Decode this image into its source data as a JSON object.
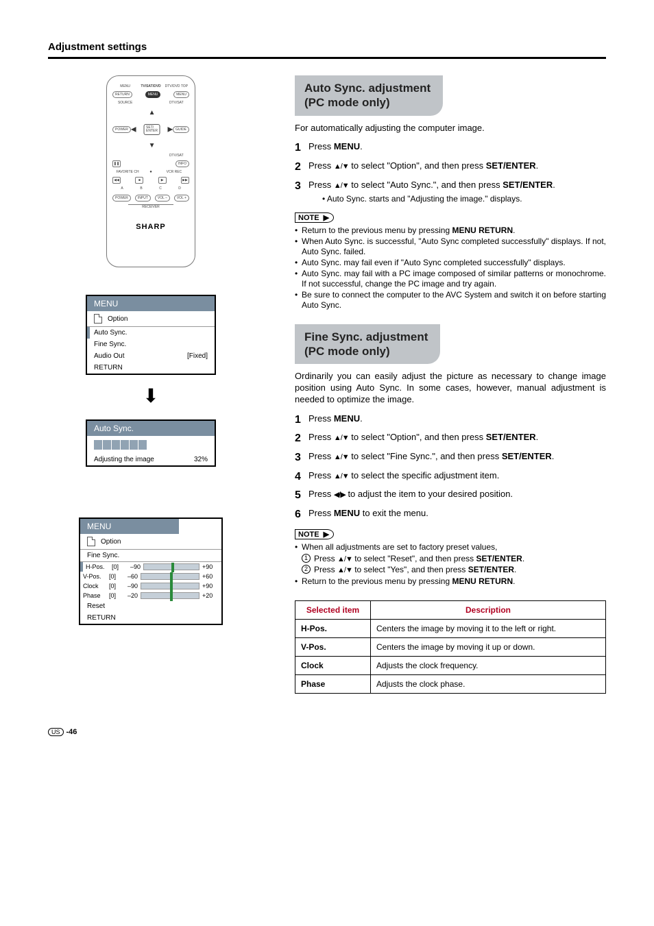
{
  "page": {
    "title": "Adjustment settings",
    "footer_region": "US",
    "footer_page": "-46"
  },
  "remote": {
    "row1": {
      "menu": "MENU",
      "tvsat": "TV/SAT/DVD",
      "dtv": "DTV/DVD TOP"
    },
    "row2": {
      "return": "RETURN",
      "menu_btn": "MENU",
      "menu_r": "MENU"
    },
    "row3": {
      "source": "SOURCE",
      "dtvsat": "DTV/SAT"
    },
    "row4": {
      "power": "POWER",
      "guide": "GUIDE"
    },
    "dpad_center": "SET/\nENTER",
    "dtv_sat2": "DTV/SAT",
    "info": "INFO",
    "fav": "FAVORITE CH",
    "vcr": "VCR REC",
    "abcd": {
      "a": "A",
      "b": "B",
      "c": "C",
      "d": "D"
    },
    "bottom": {
      "power": "POWER",
      "input": "INPUT",
      "volm": "VOL –",
      "volp": "VOL +",
      "receiver": "RECEIVER"
    },
    "logo": "SHARP"
  },
  "osd1": {
    "head": "MENU",
    "icon_label": "Option",
    "items": [
      {
        "label": "Auto Sync.",
        "sel": true,
        "val": ""
      },
      {
        "label": "Fine Sync.",
        "sel": false,
        "val": ""
      },
      {
        "label": "Audio Out",
        "sel": false,
        "val": "[Fixed]"
      },
      {
        "label": "RETURN",
        "sel": false,
        "val": ""
      }
    ]
  },
  "osd_auto": {
    "head": "Auto Sync.",
    "label": "Adjusting the image",
    "pct": "32%",
    "segments": 6
  },
  "osd_fine": {
    "head": "MENU",
    "icon_label": "Option",
    "sub": "Fine Sync.",
    "rows": [
      {
        "name": "H-Pos.",
        "cv": "[0]",
        "min": "–90",
        "max": "+90",
        "sel": true
      },
      {
        "name": "V-Pos.",
        "cv": "[0]",
        "min": "–60",
        "max": "+60"
      },
      {
        "name": "Clock",
        "cv": "[0]",
        "min": "–90",
        "max": "+90"
      },
      {
        "name": "Phase",
        "cv": "[0]",
        "min": "–20",
        "max": "+20"
      }
    ],
    "reset": "Reset",
    "return": "RETURN"
  },
  "sec_auto": {
    "title": "Auto Sync. adjustment\n(PC mode only)",
    "intro": "For automatically adjusting the computer image.",
    "steps": [
      {
        "n": "1",
        "pre": "Press ",
        "b": "MENU",
        "post": "."
      },
      {
        "n": "2",
        "pre": "Press ",
        "arr": "▲/▼",
        "mid": " to select \"Option\", and then press ",
        "b": "SET/ENTER",
        "post": "."
      },
      {
        "n": "3",
        "pre": "Press ",
        "arr": "▲/▼",
        "mid": " to select \"Auto Sync.\", and then press ",
        "b": "SET/ENTER",
        "post": ".",
        "bullet": "Auto Sync. starts and \"Adjusting the image.\" displays."
      }
    ],
    "note_label": "NOTE",
    "notes": [
      "Return to the previous menu by pressing <b>MENU RETURN</b>.",
      "When Auto Sync. is successful, \"Auto Sync completed successfully\" displays. If not, Auto Sync. failed.",
      "Auto Sync. may fail even if \"Auto Sync completed successfully\" displays.",
      "Auto Sync. may fail with a PC image composed of similar patterns or monochrome. If not successful, change the PC image and try again.",
      "Be sure to connect the computer to the AVC System and switch it on before starting Auto Sync."
    ]
  },
  "sec_fine": {
    "title": "Fine Sync. adjustment\n(PC mode only)",
    "intro": "Ordinarily you can easily adjust the picture as necessary to change image position using Auto Sync. In some cases, however, manual adjustment is needed to optimize the image.",
    "steps": [
      {
        "n": "1",
        "pre": "Press ",
        "b": "MENU",
        "post": "."
      },
      {
        "n": "2",
        "pre": "Press ",
        "arr": "▲/▼",
        "mid": " to select \"Option\", and then press ",
        "b": "SET/ENTER",
        "post": "."
      },
      {
        "n": "3",
        "pre": "Press ",
        "arr": "▲/▼",
        "mid": " to select \"Fine Sync.\", and then press ",
        "b": "SET/ENTER",
        "post": "."
      },
      {
        "n": "4",
        "pre": "Press ",
        "arr": "▲/▼",
        "mid": " to select the specific adjustment item.",
        "b": "",
        "post": ""
      },
      {
        "n": "5",
        "pre": "Press ",
        "arr": "◀/▶",
        "mid": " to adjust the item to your desired position.",
        "b": "",
        "post": ""
      },
      {
        "n": "6",
        "pre": "Press ",
        "b": "MENU",
        "post": " to exit the menu."
      }
    ],
    "note_label": "NOTE",
    "notes_lead": "When all adjustments are set to factory preset values,",
    "circ": [
      {
        "n": "1",
        "arr": "▲/▼",
        "txt": " to select \"Reset\", and then press ",
        "b": "SET/ENTER",
        "post": "."
      },
      {
        "n": "2",
        "arr": "▲/▼",
        "txt": " to select \"Yes\", and then press ",
        "b": "SET/ENTER",
        "post": "."
      }
    ],
    "note_tail": "Return to the previous menu by pressing <b>MENU RETURN</b>.",
    "table": {
      "headers": [
        "Selected item",
        "Description"
      ],
      "rows": [
        [
          "H-Pos.",
          "Centers the image by moving it to the left or right."
        ],
        [
          "V-Pos.",
          "Centers the image by moving it up or down."
        ],
        [
          "Clock",
          "Adjusts the clock frequency."
        ],
        [
          "Phase",
          "Adjusts the clock phase."
        ]
      ]
    }
  }
}
